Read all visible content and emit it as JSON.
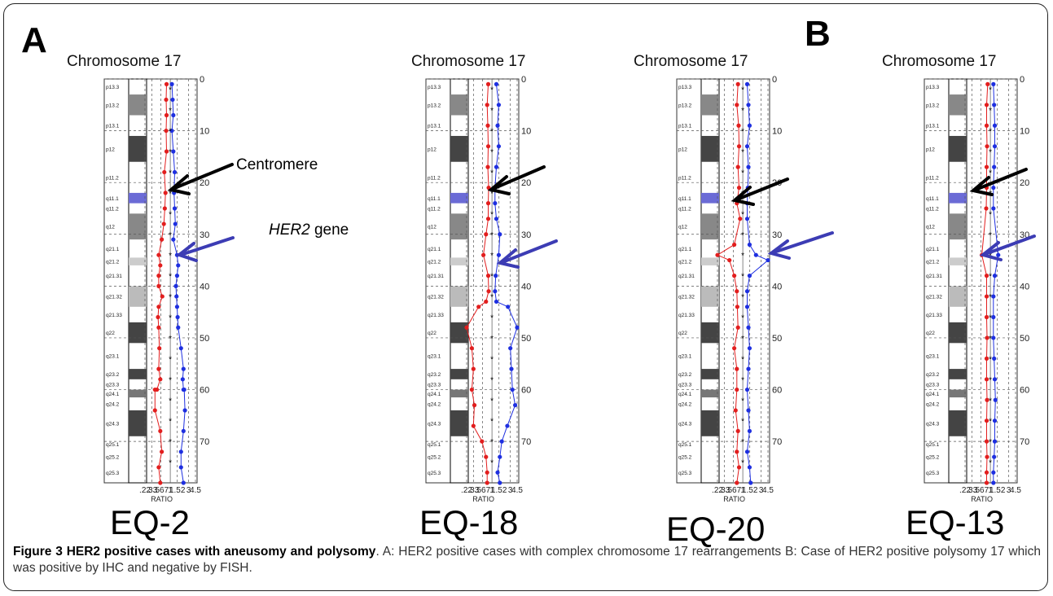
{
  "figure": {
    "panel_letters": [
      "A",
      "B"
    ],
    "chromosome_title": "Chromosome 17",
    "x_axis_label": "RATIO",
    "x_tick_labels": [
      ".22",
      ".33",
      ".567",
      "1",
      "1.52",
      "3",
      "4.5"
    ],
    "y_tick_labels": [
      "0",
      "10",
      "20",
      "30",
      "40",
      "50",
      "60",
      "70"
    ],
    "band_labels": [
      "p13.3",
      "p13.2",
      "p13.1",
      "p12",
      "p11.2",
      "q11.1",
      "q11.2",
      "q12",
      "q21.1",
      "q21.2",
      "q21.31",
      "q21.32",
      "q21.33",
      "q22",
      "q23.1",
      "q23.2",
      "q23.3",
      "q24.1",
      "q24.2",
      "q24.3",
      "q25.1",
      "q25.2",
      "q25.3"
    ],
    "annotations": {
      "centromere": "Centromere",
      "gene_italic": "HER2",
      "gene_suffix": " gene"
    },
    "samples": [
      "EQ-2",
      "EQ-18",
      "EQ-20",
      "EQ-13"
    ],
    "colors": {
      "loss": "#e21e1e",
      "gain": "#1e2fe0",
      "pointer_black": "#000000",
      "pointer_blue": "#3c3cb4"
    }
  },
  "caption": {
    "title": "Figure 3 HER2 positive cases with aneusomy and polysomy",
    "body": ". A: HER2 positive cases with complex chromosome 17 rearrangements B: Case of HER2 positive polysomy 17 which was positive by IHC and negative by FISH."
  },
  "chart_data": [
    {
      "type": "line",
      "title": "Chromosome 17",
      "sample": "EQ-2",
      "xlabel": "RATIO",
      "xscale": "log",
      "ylim": [
        0,
        78
      ],
      "series": [
        {
          "color": "#e21e1e",
          "x": [
            0.8,
            0.78,
            0.8,
            0.78,
            0.8,
            0.7,
            0.75,
            0.72,
            0.68,
            0.6,
            0.5,
            0.55,
            0.5,
            0.5,
            0.62,
            0.5,
            0.48,
            0.5,
            0.52,
            0.5,
            0.55,
            0.45,
            0.4,
            0.4,
            0.55,
            0.6,
            0.5,
            0.55
          ],
          "y": [
            1,
            4,
            7,
            10,
            14,
            18,
            22,
            25,
            28,
            31,
            34,
            36,
            38,
            40,
            42,
            44,
            46,
            48,
            52,
            56,
            58,
            60,
            60,
            64,
            68,
            72,
            75,
            78
          ]
        },
        {
          "color": "#1e2fe0",
          "x": [
            1.1,
            1.15,
            1.2,
            1.1,
            1.2,
            1.3,
            1.25,
            1.3,
            1.35,
            1.2,
            1.5,
            1.6,
            1.5,
            1.4,
            1.45,
            1.5,
            1.55,
            1.6,
            1.9,
            2.2,
            2.1,
            2.2,
            2.3,
            2.4,
            2.2,
            1.9,
            1.9,
            2.2
          ],
          "y": [
            1,
            4,
            7,
            10,
            14,
            18,
            22,
            25,
            28,
            31,
            34,
            36,
            38,
            40,
            42,
            44,
            46,
            48,
            52,
            56,
            58,
            60,
            60,
            64,
            68,
            72,
            75,
            78
          ]
        }
      ]
    },
    {
      "type": "line",
      "title": "Chromosome 17",
      "sample": "EQ-18",
      "xlabel": "RATIO",
      "xscale": "log",
      "ylim": [
        0,
        78
      ],
      "series": [
        {
          "color": "#e21e1e",
          "x": [
            0.8,
            0.75,
            0.78,
            0.8,
            0.78,
            0.82,
            0.8,
            0.8,
            0.7,
            0.6,
            0.8,
            0.82,
            0.7,
            0.45,
            0.22,
            0.3,
            0.33,
            0.3,
            0.35,
            0.33,
            0.55,
            0.7,
            0.75,
            0.75
          ],
          "y": [
            1,
            5,
            9,
            13,
            17,
            21,
            24,
            27,
            30,
            34,
            38,
            41,
            43,
            44,
            48,
            52,
            56,
            60,
            63,
            67,
            70,
            73,
            76,
            78
          ]
        },
        {
          "color": "#1e2fe0",
          "x": [
            1.3,
            1.5,
            1.4,
            1.5,
            1.3,
            1.2,
            1.2,
            1.3,
            1.6,
            1.5,
            1.25,
            1.2,
            1.3,
            2.6,
            4.5,
            3.0,
            3.2,
            3.4,
            4.0,
            2.5,
            1.8,
            1.6,
            1.4,
            1.6
          ],
          "y": [
            1,
            5,
            9,
            13,
            17,
            21,
            24,
            27,
            30,
            34,
            38,
            41,
            43,
            44,
            48,
            52,
            56,
            60,
            63,
            67,
            70,
            73,
            76,
            78
          ]
        }
      ]
    },
    {
      "type": "line",
      "title": "Chromosome 17",
      "sample": "EQ-20",
      "xlabel": "RATIO",
      "xscale": "log",
      "ylim": [
        0,
        78
      ],
      "series": [
        {
          "color": "#e21e1e",
          "x": [
            0.75,
            0.7,
            0.78,
            0.8,
            0.75,
            0.8,
            0.7,
            0.85,
            0.6,
            0.22,
            0.45,
            0.6,
            0.7,
            0.72,
            0.75,
            0.6,
            0.7,
            0.7,
            0.65,
            0.75,
            0.7,
            0.8,
            0.7
          ],
          "y": [
            1,
            5,
            9,
            13,
            17,
            21,
            24,
            27,
            32,
            34,
            35,
            38,
            41,
            44,
            48,
            52,
            56,
            60,
            64,
            68,
            72,
            75,
            78
          ]
        },
        {
          "color": "#1e2fe0",
          "x": [
            1.3,
            1.4,
            1.5,
            1.3,
            1.4,
            1.35,
            1.3,
            1.3,
            1.5,
            2.2,
            4.5,
            1.5,
            1.3,
            1.3,
            1.4,
            1.5,
            1.4,
            1.3,
            1.4,
            1.5,
            1.3,
            1.5,
            1.6
          ],
          "y": [
            1,
            5,
            9,
            13,
            17,
            21,
            24,
            27,
            32,
            34,
            35,
            38,
            41,
            44,
            48,
            52,
            56,
            60,
            64,
            68,
            72,
            75,
            78
          ]
        }
      ]
    },
    {
      "type": "line",
      "title": "Chromosome 17",
      "sample": "EQ-13",
      "xlabel": "RATIO",
      "xscale": "log",
      "ylim": [
        0,
        78
      ],
      "series": [
        {
          "color": "#e21e1e",
          "x": [
            0.85,
            0.8,
            0.8,
            0.82,
            0.8,
            0.8,
            0.78,
            0.6,
            0.8,
            0.8,
            0.8,
            0.82,
            0.8,
            0.8,
            0.82,
            0.8,
            0.8,
            0.82,
            0.8,
            0.8
          ],
          "y": [
            1,
            5,
            9,
            13,
            17,
            21,
            25,
            34,
            38,
            42,
            46,
            50,
            54,
            58,
            62,
            66,
            70,
            73,
            76,
            78
          ]
        },
        {
          "color": "#1e2fe0",
          "x": [
            1.2,
            1.25,
            1.3,
            1.3,
            1.25,
            1.2,
            1.2,
            1.6,
            1.3,
            1.2,
            1.2,
            1.2,
            1.25,
            1.3,
            1.35,
            1.3,
            1.3,
            1.25,
            1.2,
            1.2
          ],
          "y": [
            1,
            5,
            9,
            13,
            17,
            21,
            25,
            34,
            38,
            42,
            46,
            50,
            54,
            58,
            62,
            66,
            70,
            73,
            76,
            78
          ]
        }
      ]
    }
  ]
}
